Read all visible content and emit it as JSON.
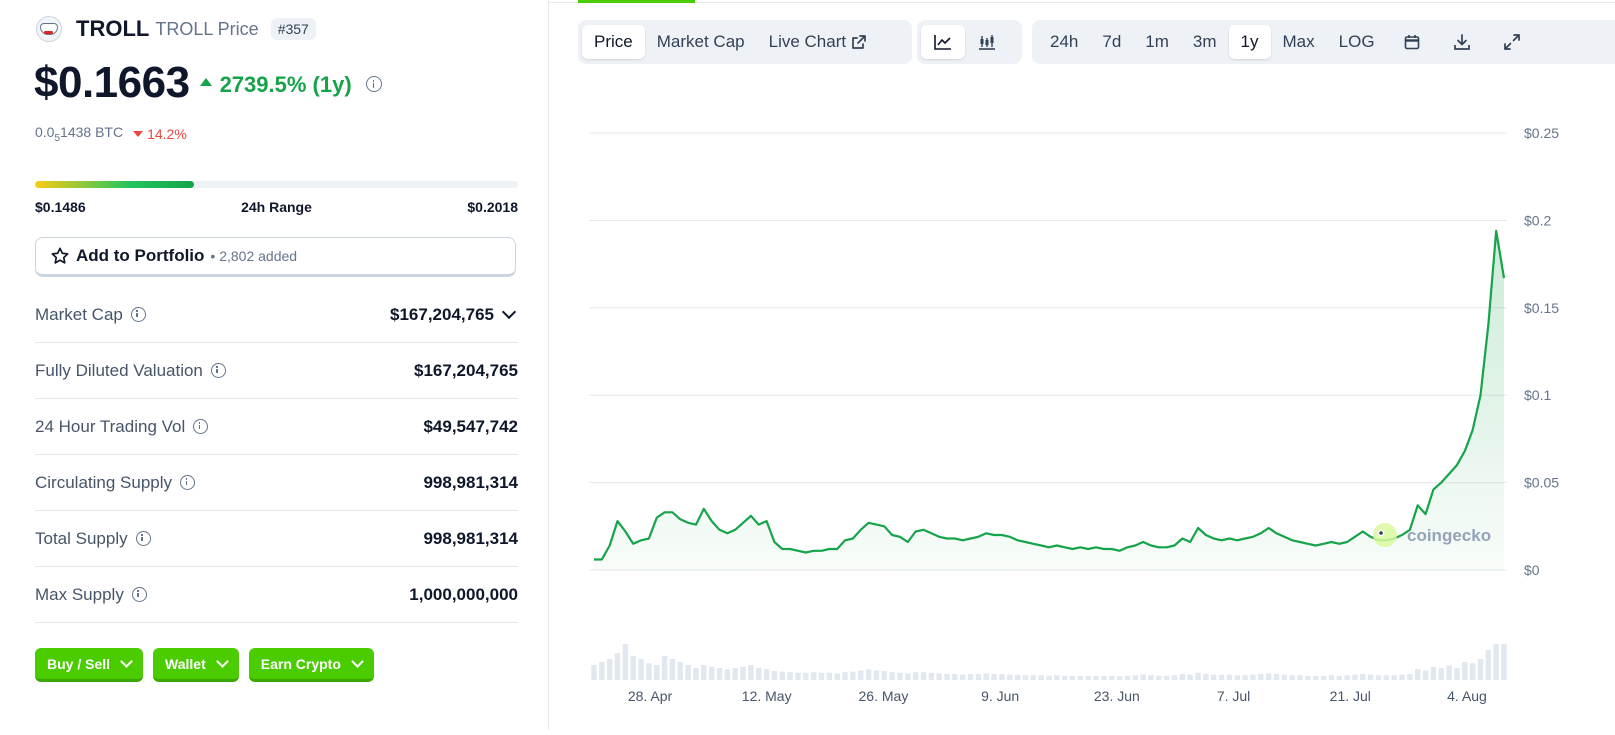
{
  "coin": {
    "name": "TROLL",
    "subtitle": "TROLL Price",
    "rank": "#357",
    "logo_icon": "troll-face-icon",
    "price": "$0.1663",
    "change": "2739.5% (1y)",
    "btc_prefix": "0.0",
    "btc_sub": "5",
    "btc_rest": "1438 BTC",
    "btc_change": "14.2%"
  },
  "range": {
    "low": "$0.1486",
    "label": "24h Range",
    "high": "$0.2018",
    "fill_percent": 33
  },
  "portfolio": {
    "label": "Add to Portfolio",
    "added": "• 2,802 added"
  },
  "stats": [
    {
      "label": "Market Cap",
      "value": "$167,204,765"
    },
    {
      "label": "Fully Diluted Valuation",
      "value": "$167,204,765"
    },
    {
      "label": "24 Hour Trading Vol",
      "value": "$49,547,742"
    },
    {
      "label": "Circulating Supply",
      "value": "998,981,314"
    },
    {
      "label": "Total Supply",
      "value": "998,981,314"
    },
    {
      "label": "Max Supply",
      "value": "1,000,000,000"
    }
  ],
  "actions": {
    "buy_sell": "Buy / Sell",
    "wallet": "Wallet",
    "earn": "Earn Crypto"
  },
  "chart_tabs": {
    "price": "Price",
    "market_cap": "Market Cap",
    "live_chart": "Live Chart",
    "active": "Price"
  },
  "chart_types": [
    "line-chart-icon",
    "candlestick-chart-icon"
  ],
  "ranges": {
    "options": [
      "24h",
      "7d",
      "1m",
      "3m",
      "1y",
      "Max",
      "LOG"
    ],
    "active": "1y"
  },
  "tool_icons": [
    "calendar-icon",
    "download-icon",
    "expand-icon"
  ],
  "colors": {
    "accent_green": "#4bcc00",
    "up_green": "#16a34a",
    "down_red": "#ef4444",
    "line_green": "#16a34a"
  },
  "watermark": "coingecko",
  "chart_data": {
    "type": "area",
    "ylabel_ticks": [
      "$0",
      "$0.05",
      "$0.1",
      "$0.15",
      "$0.2",
      "$0.25"
    ],
    "ylim": [
      0,
      0.25
    ],
    "x_ticks": [
      "28. Apr",
      "12. May",
      "26. May",
      "9. Jun",
      "23. Jun",
      "7. Jul",
      "21. Jul",
      "4. Aug"
    ],
    "grid": true,
    "series": [
      {
        "values": [
          0.006,
          0.006,
          0.014,
          0.028,
          0.022,
          0.015,
          0.017,
          0.018,
          0.03,
          0.033,
          0.033,
          0.029,
          0.027,
          0.026,
          0.035,
          0.028,
          0.023,
          0.021,
          0.023,
          0.027,
          0.031,
          0.026,
          0.028,
          0.016,
          0.012,
          0.012,
          0.011,
          0.01,
          0.011,
          0.011,
          0.012,
          0.012,
          0.017,
          0.018,
          0.023,
          0.027,
          0.026,
          0.025,
          0.02,
          0.019,
          0.016,
          0.022,
          0.023,
          0.021,
          0.019,
          0.018,
          0.018,
          0.017,
          0.018,
          0.019,
          0.021,
          0.02,
          0.02,
          0.019,
          0.017,
          0.016,
          0.015,
          0.014,
          0.013,
          0.014,
          0.013,
          0.012,
          0.013,
          0.012,
          0.013,
          0.012,
          0.012,
          0.011,
          0.013,
          0.014,
          0.016,
          0.014,
          0.013,
          0.013,
          0.014,
          0.018,
          0.016,
          0.024,
          0.02,
          0.018,
          0.017,
          0.018,
          0.017,
          0.018,
          0.019,
          0.021,
          0.024,
          0.021,
          0.019,
          0.017,
          0.016,
          0.015,
          0.014,
          0.015,
          0.016,
          0.015,
          0.016,
          0.019,
          0.022,
          0.019,
          0.017,
          0.017,
          0.018,
          0.02,
          0.023,
          0.037,
          0.032,
          0.046,
          0.05,
          0.055,
          0.06,
          0.068,
          0.08,
          0.1,
          0.14,
          0.194,
          0.167
        ],
        "volume": [
          0.25,
          0.3,
          0.35,
          0.45,
          0.6,
          0.4,
          0.35,
          0.28,
          0.25,
          0.4,
          0.35,
          0.3,
          0.25,
          0.2,
          0.25,
          0.22,
          0.2,
          0.18,
          0.2,
          0.22,
          0.25,
          0.2,
          0.18,
          0.15,
          0.14,
          0.13,
          0.12,
          0.12,
          0.13,
          0.12,
          0.12,
          0.11,
          0.13,
          0.14,
          0.16,
          0.18,
          0.16,
          0.15,
          0.13,
          0.12,
          0.11,
          0.13,
          0.13,
          0.12,
          0.11,
          0.1,
          0.1,
          0.09,
          0.1,
          0.1,
          0.11,
          0.1,
          0.1,
          0.09,
          0.09,
          0.08,
          0.08,
          0.08,
          0.07,
          0.08,
          0.07,
          0.07,
          0.07,
          0.07,
          0.07,
          0.07,
          0.07,
          0.06,
          0.07,
          0.08,
          0.09,
          0.08,
          0.07,
          0.07,
          0.08,
          0.1,
          0.09,
          0.12,
          0.1,
          0.09,
          0.09,
          0.09,
          0.08,
          0.08,
          0.09,
          0.1,
          0.11,
          0.1,
          0.09,
          0.08,
          0.08,
          0.07,
          0.07,
          0.07,
          0.08,
          0.07,
          0.08,
          0.09,
          0.1,
          0.09,
          0.08,
          0.08,
          0.08,
          0.09,
          0.1,
          0.18,
          0.16,
          0.22,
          0.2,
          0.24,
          0.2,
          0.3,
          0.28,
          0.35,
          0.5,
          0.6,
          0.6
        ]
      }
    ]
  }
}
